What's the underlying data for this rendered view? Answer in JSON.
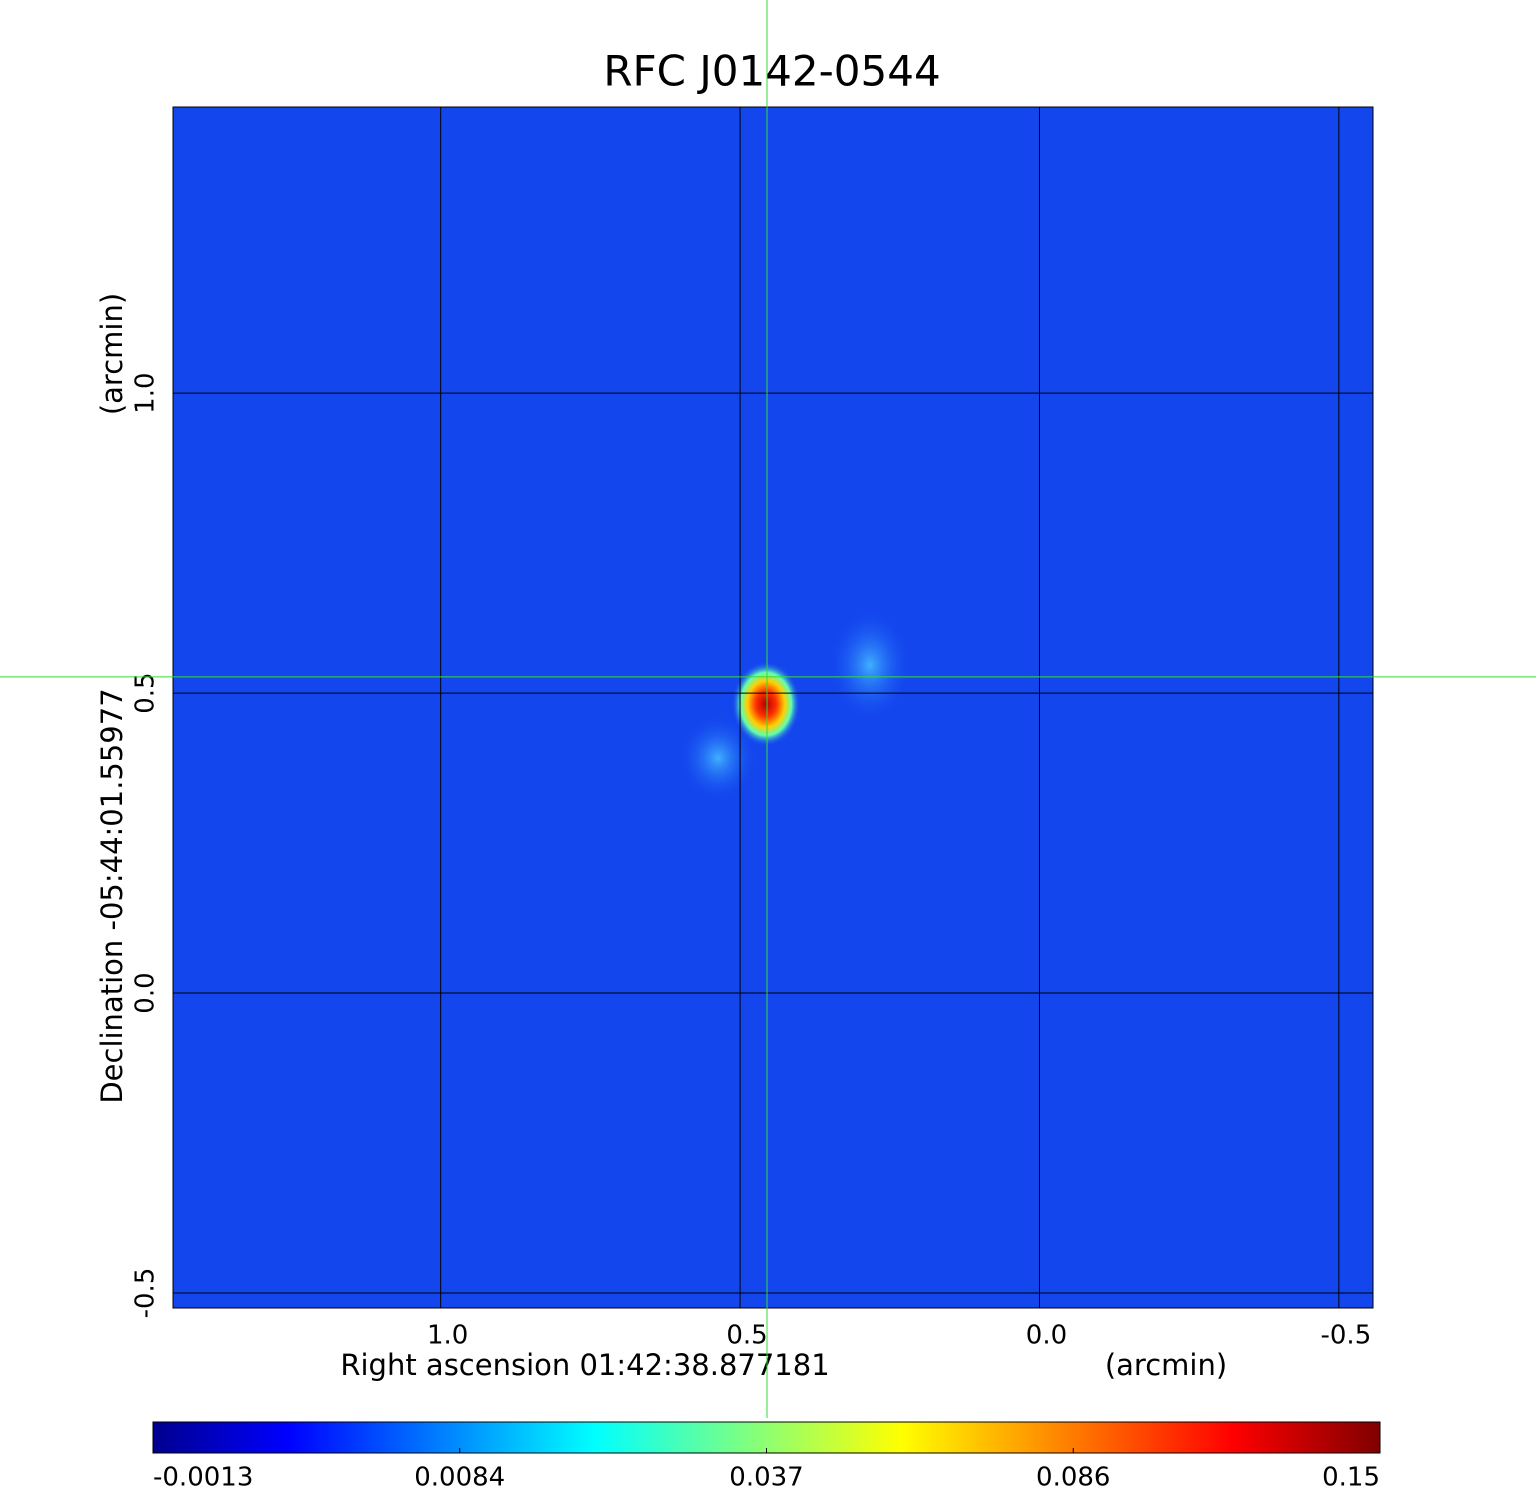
{
  "chart_data": {
    "type": "image",
    "title": "RFC J0142-0544",
    "title_color": "#1a1acc",
    "xlabel": "Right ascension  01:42:38.877181",
    "xunit": "(arcmin)",
    "ylabel": "Declination  -05:44:01.55977",
    "yunit": "(arcmin)",
    "xlim": [
      1.447,
      -0.557
    ],
    "ylim": [
      -0.525,
      1.477
    ],
    "xticks": [
      {
        "value": 1,
        "label": "1.0"
      },
      {
        "value": 0.5,
        "label": "0.5"
      },
      {
        "value": 0,
        "label": "0.0"
      },
      {
        "value": -0.5,
        "label": "-0.5"
      }
    ],
    "yticks": [
      {
        "value": 1,
        "label": "1.0"
      },
      {
        "value": 0.5,
        "label": "0.5"
      },
      {
        "value": 0,
        "label": "0.0"
      },
      {
        "value": -0.5,
        "label": "-0.5"
      }
    ],
    "grid": true,
    "crosshair": {
      "x": 0.455,
      "y": 0.527,
      "color": "#33dd33"
    },
    "colormap": "jet",
    "colorbar_ticks": [
      -0.0013,
      0.0084,
      0.037,
      0.086,
      0.15
    ]
  }
}
